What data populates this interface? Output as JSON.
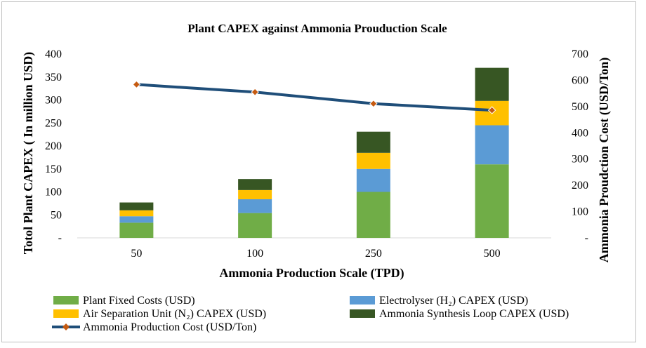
{
  "chart_data": {
    "type": "bar",
    "title": "Plant CAPEX against Ammonia Prouduction Scale",
    "xlabel": "Ammonia Production Scale (TPD)",
    "ylabel": "Totol Plant CAPEX ( In million USD)",
    "y2label": "Ammonia Proudction Cost (USD/Ton)",
    "categories": [
      "50",
      "100",
      "250",
      "500"
    ],
    "ylim": [
      0,
      400
    ],
    "y2lim": [
      0,
      700
    ],
    "yticks": [
      "-",
      "50",
      "100",
      "150",
      "200",
      "250",
      "300",
      "350",
      "400"
    ],
    "y2ticks": [
      "-",
      "100",
      "200",
      "300",
      "400",
      "500",
      "600",
      "700"
    ],
    "stacked": true,
    "series": [
      {
        "name": "Plant Fixed Costs (USD)",
        "type": "bar",
        "axis": "left",
        "color": "#70ad47",
        "values": [
          33,
          54,
          100,
          160
        ]
      },
      {
        "name": "Electrolyser (H₂) CAPEX (USD)",
        "type": "bar",
        "axis": "left",
        "color": "#5b9bd5",
        "values": [
          14,
          30,
          50,
          85
        ]
      },
      {
        "name": "Air Separation Unit (N₂) CAPEX (USD)",
        "type": "bar",
        "axis": "left",
        "color": "#ffc000",
        "values": [
          13,
          20,
          35,
          53
        ]
      },
      {
        "name": "Ammonia Synthesis Loop CAPEX (USD)",
        "type": "bar",
        "axis": "left",
        "color": "#375623",
        "values": [
          17,
          24,
          46,
          72
        ]
      },
      {
        "name": "Ammonia Production Cost (USD/Ton)",
        "type": "line",
        "axis": "right",
        "color": "#1f4e79",
        "marker_color": "#c55a11",
        "values": [
          584,
          555,
          511,
          486
        ]
      }
    ],
    "legend": "bottom",
    "grid": false
  }
}
